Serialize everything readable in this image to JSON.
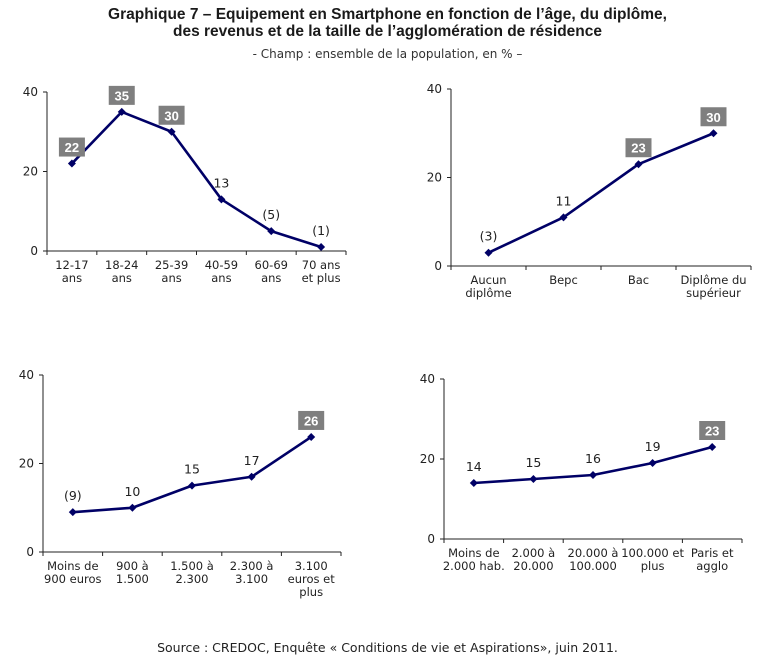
{
  "title_line1": "Graphique 7 – Equipement en Smartphone en fonction de l’âge, du diplôme,",
  "title_line2": "des revenus et de la taille de l’agglomération de résidence",
  "subtitle": "- Champ : ensemble de la population, en % –",
  "source": "Source : CREDOC, Enquête « Conditions de vie et Aspirations», juin 2011.",
  "colors": {
    "line": "#000066",
    "highlight_box": "#7f7f7f",
    "axis": "#222222"
  },
  "chart_data": [
    {
      "type": "line",
      "categories": [
        [
          "12-17",
          "ans"
        ],
        [
          "18-24",
          "ans"
        ],
        [
          "25-39",
          "ans"
        ],
        [
          "40-59",
          "ans"
        ],
        [
          "60-69",
          "ans"
        ],
        [
          "70 ans",
          "et plus"
        ]
      ],
      "values": [
        22,
        35,
        30,
        13,
        5,
        1
      ],
      "labels": [
        "22",
        "35",
        "30",
        "13",
        "(5)",
        "(1)"
      ],
      "highlighted": [
        true,
        true,
        true,
        false,
        false,
        false
      ],
      "ylim": [
        0,
        40
      ],
      "yticks": [
        0,
        20,
        40
      ]
    },
    {
      "type": "line",
      "categories": [
        [
          "Aucun",
          "diplôme"
        ],
        [
          "Bepc"
        ],
        [
          "Bac"
        ],
        [
          "Diplôme du",
          "supérieur"
        ]
      ],
      "values": [
        3,
        11,
        23,
        30
      ],
      "labels": [
        "(3)",
        "11",
        "23",
        "30"
      ],
      "highlighted": [
        false,
        false,
        true,
        true
      ],
      "ylim": [
        0,
        40
      ],
      "yticks": [
        0,
        20,
        40
      ]
    },
    {
      "type": "line",
      "categories": [
        [
          "Moins de",
          "900 euros"
        ],
        [
          "900 à",
          "1.500"
        ],
        [
          "1.500 à",
          "2.300"
        ],
        [
          "2.300 à",
          "3.100"
        ],
        [
          "3.100",
          "euros et",
          "plus"
        ]
      ],
      "values": [
        9,
        10,
        15,
        17,
        26
      ],
      "labels": [
        "(9)",
        "10",
        "15",
        "17",
        "26"
      ],
      "highlighted": [
        false,
        false,
        false,
        false,
        true
      ],
      "ylim": [
        0,
        40
      ],
      "yticks": [
        0,
        20,
        40
      ]
    },
    {
      "type": "line",
      "categories": [
        [
          "Moins de",
          "2.000 hab."
        ],
        [
          "2.000 à",
          "20.000"
        ],
        [
          "20.000 à",
          "100.000"
        ],
        [
          "100.000 et",
          "plus"
        ],
        [
          "Paris et",
          "agglo"
        ]
      ],
      "values": [
        14,
        15,
        16,
        19,
        23
      ],
      "labels": [
        "14",
        "15",
        "16",
        "19",
        "23"
      ],
      "highlighted": [
        false,
        false,
        false,
        false,
        true
      ],
      "ylim": [
        0,
        40
      ],
      "yticks": [
        0,
        20,
        40
      ]
    }
  ]
}
